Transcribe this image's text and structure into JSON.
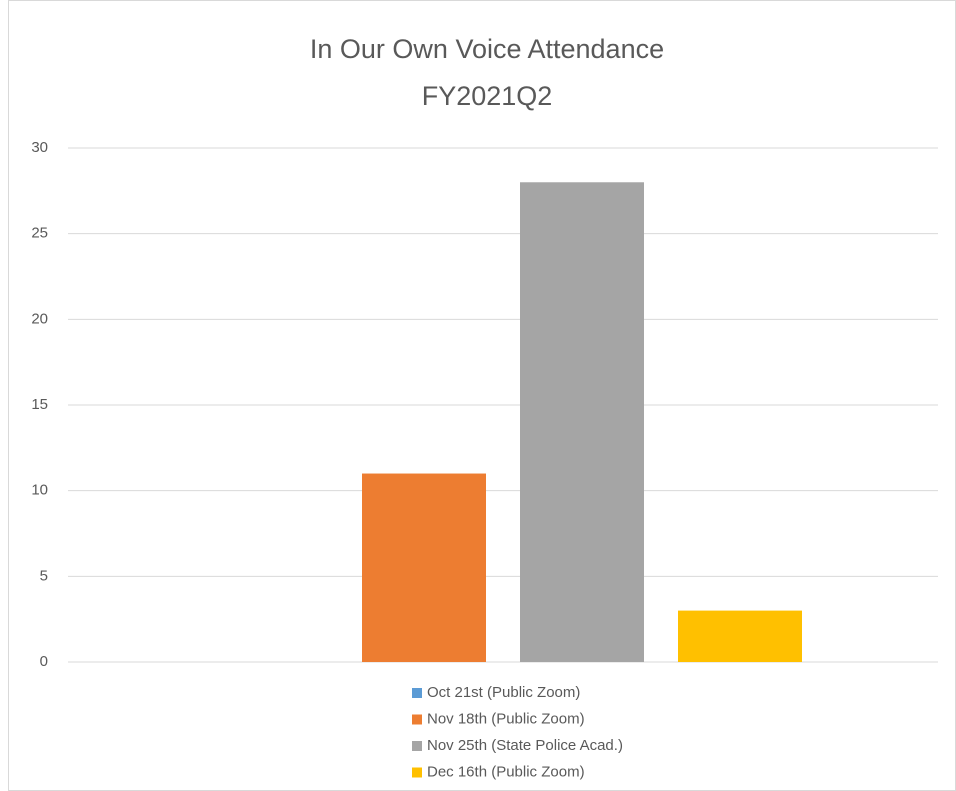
{
  "chart_data": {
    "type": "bar",
    "title": "In Our Own Voice Attendance",
    "subtitle": "FY2021Q2",
    "categories": [
      null
    ],
    "series": [
      {
        "name": "Oct 21st (Public Zoom)",
        "color": "#5b9bd5",
        "values": [
          0
        ]
      },
      {
        "name": "Nov 18th (Public Zoom)",
        "color": "#ed7d31",
        "values": [
          11
        ]
      },
      {
        "name": "Nov 25th (State Police Acad.)",
        "color": "#a5a5a5",
        "values": [
          28
        ]
      },
      {
        "name": "Dec 16th (Public Zoom)",
        "color": "#ffc000",
        "values": [
          3
        ]
      }
    ],
    "ylim": [
      0,
      30
    ],
    "yticks": [
      0,
      5,
      10,
      15,
      20,
      25,
      30
    ],
    "grid": true,
    "legend": "bottom"
  }
}
